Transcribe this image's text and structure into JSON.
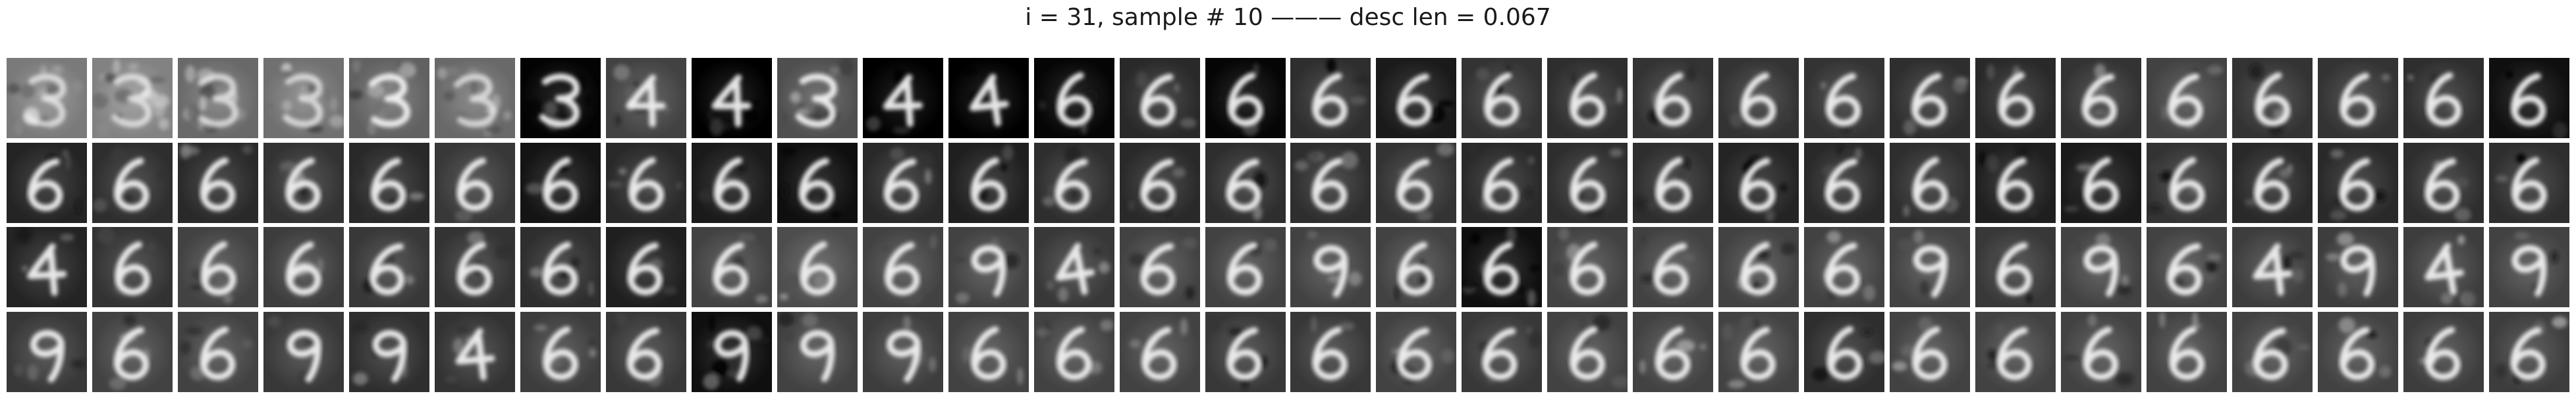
{
  "figure": {
    "title": "i = 31, sample # 10 ——— desc len = 0.067"
  },
  "grid": {
    "rows": 4,
    "cols": 30,
    "tile_colors": {
      "digit_stroke": "#f2f2f2",
      "background_dark": "#0d0d0d",
      "background_mid": "#555555"
    },
    "rows_data": [
      {
        "bg": [
          0.52,
          0.55,
          0.45,
          0.48,
          0.42,
          0.45,
          0.05,
          0.3,
          0.04,
          0.35,
          0.03,
          0.04,
          0.06,
          0.2,
          0.06,
          0.22,
          0.14,
          0.24,
          0.22,
          0.24,
          0.24,
          0.24,
          0.22,
          0.2,
          0.24,
          0.3,
          0.24,
          0.24,
          0.22,
          0.1
        ],
        "digit": [
          "3",
          "3",
          "3",
          "3",
          "3",
          "3",
          "3",
          "4",
          "4",
          "3",
          "4",
          "4",
          "6",
          "6",
          "6",
          "6",
          "6",
          "6",
          "6",
          "6",
          "6",
          "6",
          "6",
          "6",
          "6",
          "6",
          "6",
          "6",
          "6",
          "6"
        ],
        "noise": [
          0.55,
          0.6,
          0.45,
          0.55,
          0.4,
          0.45,
          0.2,
          0.25,
          0.15,
          0.35,
          0.1,
          0.1,
          0.1,
          0.1,
          0.1,
          0.12,
          0.12,
          0.12,
          0.1,
          0.1,
          0.1,
          0.1,
          0.1,
          0.1,
          0.1,
          0.12,
          0.1,
          0.1,
          0.1,
          0.1
        ]
      },
      {
        "bg": [
          0.18,
          0.22,
          0.2,
          0.24,
          0.2,
          0.26,
          0.12,
          0.2,
          0.14,
          0.1,
          0.2,
          0.16,
          0.22,
          0.2,
          0.22,
          0.22,
          0.24,
          0.2,
          0.22,
          0.22,
          0.18,
          0.2,
          0.22,
          0.16,
          0.14,
          0.24,
          0.2,
          0.2,
          0.22,
          0.22
        ],
        "digit": [
          "6",
          "6",
          "6",
          "6",
          "6",
          "6",
          "6",
          "6",
          "6",
          "6",
          "6",
          "6",
          "6",
          "6",
          "6",
          "6",
          "6",
          "6",
          "6",
          "6",
          "6",
          "6",
          "6",
          "6",
          "6",
          "6",
          "6",
          "6",
          "6",
          "6"
        ],
        "noise": [
          0.12,
          0.12,
          0.12,
          0.12,
          0.12,
          0.12,
          0.12,
          0.12,
          0.12,
          0.12,
          0.12,
          0.12,
          0.12,
          0.12,
          0.12,
          0.12,
          0.12,
          0.12,
          0.12,
          0.12,
          0.12,
          0.12,
          0.12,
          0.12,
          0.12,
          0.12,
          0.12,
          0.12,
          0.12,
          0.12
        ]
      },
      {
        "bg": [
          0.18,
          0.24,
          0.3,
          0.28,
          0.26,
          0.24,
          0.22,
          0.16,
          0.3,
          0.34,
          0.3,
          0.3,
          0.26,
          0.3,
          0.3,
          0.3,
          0.3,
          0.1,
          0.3,
          0.3,
          0.3,
          0.3,
          0.3,
          0.26,
          0.3,
          0.3,
          0.28,
          0.28,
          0.28,
          0.3
        ],
        "digit": [
          "4",
          "6",
          "6",
          "6",
          "6",
          "6",
          "6",
          "6",
          "6",
          "6",
          "6",
          "9",
          "4",
          "6",
          "6",
          "9",
          "6",
          "6",
          "6",
          "6",
          "6",
          "6",
          "9",
          "6",
          "9",
          "6",
          "4",
          "9",
          "4",
          "9"
        ],
        "noise": [
          0.14,
          0.14,
          0.14,
          0.14,
          0.14,
          0.14,
          0.14,
          0.14,
          0.14,
          0.14,
          0.14,
          0.14,
          0.14,
          0.14,
          0.14,
          0.14,
          0.14,
          0.3,
          0.14,
          0.14,
          0.14,
          0.14,
          0.14,
          0.14,
          0.14,
          0.14,
          0.14,
          0.14,
          0.14,
          0.14
        ]
      },
      {
        "bg": [
          0.26,
          0.3,
          0.3,
          0.26,
          0.22,
          0.24,
          0.28,
          0.26,
          0.1,
          0.3,
          0.28,
          0.3,
          0.3,
          0.3,
          0.26,
          0.26,
          0.3,
          0.26,
          0.3,
          0.3,
          0.3,
          0.22,
          0.3,
          0.3,
          0.3,
          0.3,
          0.3,
          0.3,
          0.28,
          0.28
        ],
        "digit": [
          "9",
          "6",
          "6",
          "9",
          "9",
          "4",
          "6",
          "6",
          "9",
          "9",
          "9",
          "6",
          "6",
          "6",
          "6",
          "6",
          "6",
          "6",
          "6",
          "6",
          "6",
          "6",
          "6",
          "6",
          "6",
          "6",
          "6",
          "6",
          "6",
          "6"
        ],
        "noise": [
          0.14,
          0.14,
          0.14,
          0.14,
          0.14,
          0.14,
          0.14,
          0.14,
          0.25,
          0.14,
          0.14,
          0.14,
          0.14,
          0.14,
          0.14,
          0.14,
          0.14,
          0.14,
          0.14,
          0.14,
          0.14,
          0.14,
          0.14,
          0.14,
          0.14,
          0.14,
          0.14,
          0.14,
          0.14,
          0.14
        ]
      }
    ]
  }
}
